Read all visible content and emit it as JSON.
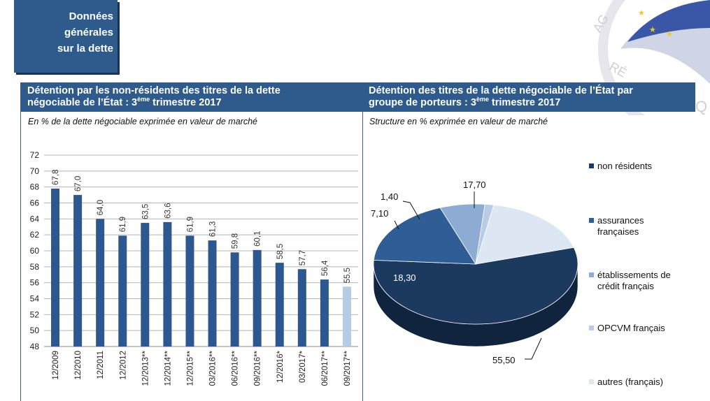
{
  "tag": {
    "text": "Données\ngénérales\nsur la dette"
  },
  "colors": {
    "header_bg": "#2e5a8c",
    "bar": "#2c5790",
    "bar_highlight": "#b7cbe3",
    "grid": "#b4b4b4"
  },
  "chart_data": [
    {
      "type": "bar",
      "title_line1": "Détention par les non-résidents des titres de la dette",
      "title_line2_pre": "négociable de l’État : 3",
      "title_sup": "ème",
      "title_line2_post": " trimestre 2017",
      "subtitle": "En % de la dette négociable exprimée en valeur de marché",
      "categories": [
        "12/2009",
        "12/2010",
        "12/2011",
        "12/2012",
        "12/2013**",
        "12/2014**",
        "12/2015**",
        "03/2016**",
        "06/2016**",
        "09/2016**",
        "12/2016*",
        "03/2017*",
        "06/2017**",
        "09/2017**"
      ],
      "values": [
        67.8,
        67.0,
        64.0,
        61.9,
        63.5,
        63.6,
        61.9,
        61.3,
        59.8,
        60.1,
        58.5,
        57.7,
        56.4,
        55.5
      ],
      "value_labels": [
        "67,8",
        "67,0",
        "64,0",
        "61,9",
        "63,5",
        "63,6",
        "61,9",
        "61,3",
        "59,8",
        "60,1",
        "58,5",
        "57,7",
        "56,4",
        "55,5"
      ],
      "highlight_index": 13,
      "ylim": [
        48,
        72
      ],
      "yticks": [
        48,
        50,
        52,
        54,
        56,
        58,
        60,
        62,
        64,
        66,
        68,
        70,
        72
      ],
      "grid": true
    },
    {
      "type": "pie",
      "title_line1": "Détention des titres de la dette négociable de l’État par",
      "title_line2_pre": "groupe de porteurs : 3",
      "title_sup": "ème",
      "title_line2_post": " trimestre 2017",
      "subtitle": "Structure en % exprimée en valeur de marché",
      "slices": [
        {
          "name": "non résidents",
          "value": 55.5,
          "label": "55,50",
          "color": "#1c3a60",
          "side": "#10243d"
        },
        {
          "name": "assurances françaises",
          "value": 18.3,
          "label": "18,30",
          "color": "#2f5d96",
          "side": "#1d3d66"
        },
        {
          "name": "établissements de crédit français",
          "value": 7.1,
          "label": "7,10",
          "color": "#8eabd3",
          "side": "#5d7ba3"
        },
        {
          "name": "OPCVM français",
          "value": 1.4,
          "label": "1,40",
          "color": "#b8cce5",
          "side": "#8097b5"
        },
        {
          "name": "autres (français)",
          "value": 17.7,
          "label": "17,70",
          "color": "#dde7f3",
          "side": "#a5b4c7"
        }
      ],
      "legend_labels": [
        "non résidents",
        "assurances\nfrançaises",
        "établissements de\ncrédit français",
        "OPCVM français",
        "autres (français)"
      ],
      "legend_position": "right",
      "style": "3d"
    }
  ]
}
